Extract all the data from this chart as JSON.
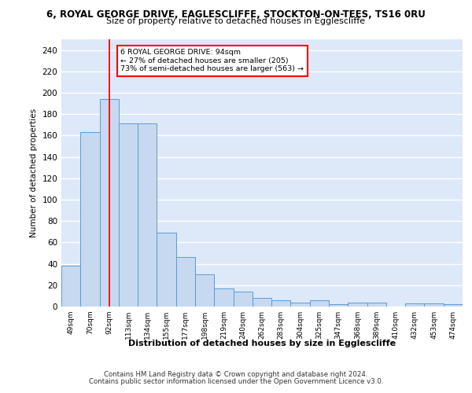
{
  "title_line1": "6, ROYAL GEORGE DRIVE, EAGLESCLIFFE, STOCKTON-ON-TEES, TS16 0RU",
  "title_line2": "Size of property relative to detached houses in Egglescliffe",
  "xlabel": "Distribution of detached houses by size in Egglescliffe",
  "ylabel": "Number of detached properties",
  "categories": [
    "49sqm",
    "70sqm",
    "92sqm",
    "113sqm",
    "134sqm",
    "155sqm",
    "177sqm",
    "198sqm",
    "219sqm",
    "240sqm",
    "262sqm",
    "283sqm",
    "304sqm",
    "325sqm",
    "347sqm",
    "368sqm",
    "389sqm",
    "410sqm",
    "432sqm",
    "453sqm",
    "474sqm"
  ],
  "values": [
    38,
    163,
    194,
    171,
    171,
    69,
    46,
    30,
    17,
    14,
    8,
    6,
    4,
    6,
    2,
    4,
    4,
    0,
    3,
    3,
    2
  ],
  "bar_color": "#c6d9f0",
  "bar_edge_color": "#5b9bd5",
  "bar_width": 1.0,
  "annotation_box_text": "6 ROYAL GEORGE DRIVE: 94sqm\n← 27% of detached houses are smaller (205)\n73% of semi-detached houses are larger (563) →",
  "annotation_box_color": "white",
  "annotation_box_edge_color": "red",
  "vertical_line_x": 2,
  "vertical_line_color": "red",
  "background_color": "#dde8f8",
  "grid_color": "white",
  "ylim": [
    0,
    250
  ],
  "yticks": [
    0,
    20,
    40,
    60,
    80,
    100,
    120,
    140,
    160,
    180,
    200,
    220,
    240
  ],
  "footer_line1": "Contains HM Land Registry data © Crown copyright and database right 2024.",
  "footer_line2": "Contains public sector information licensed under the Open Government Licence v3.0."
}
